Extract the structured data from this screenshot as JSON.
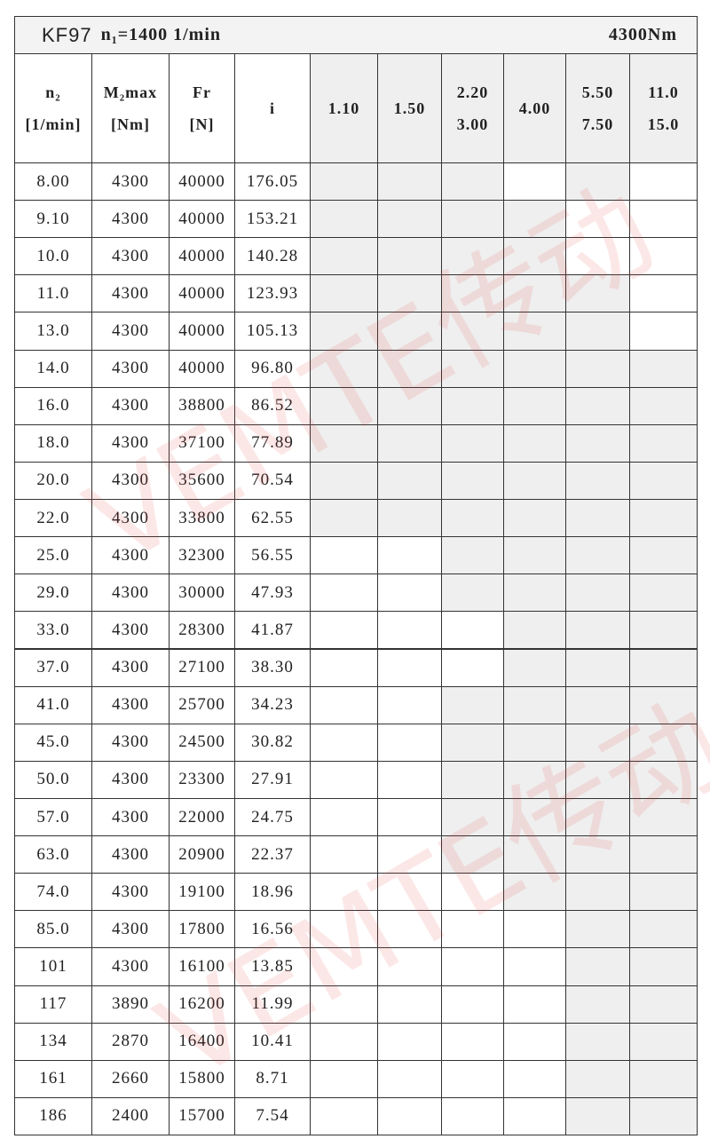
{
  "header": {
    "model": "KF97",
    "input_speed": "n₁=1400 1/min",
    "torque": "4300Nm"
  },
  "columns": [
    [
      "n₂",
      "[1/min]"
    ],
    [
      "M₂max",
      "[Nm]"
    ],
    [
      "Fr",
      "[N]"
    ],
    [
      "i"
    ],
    [
      "1.10"
    ],
    [
      "1.50"
    ],
    [
      "2.20",
      "3.00"
    ],
    [
      "4.00"
    ],
    [
      "5.50",
      "7.50"
    ],
    [
      "11.0",
      "15.0"
    ]
  ],
  "rows": [
    [
      "8.00",
      "4300",
      "40000",
      "176.05"
    ],
    [
      "9.10",
      "4300",
      "40000",
      "153.21"
    ],
    [
      "10.0",
      "4300",
      "40000",
      "140.28"
    ],
    [
      "11.0",
      "4300",
      "40000",
      "123.93"
    ],
    [
      "13.0",
      "4300",
      "40000",
      "105.13"
    ],
    [
      "14.0",
      "4300",
      "40000",
      "96.80"
    ],
    [
      "16.0",
      "4300",
      "38800",
      "86.52"
    ],
    [
      "18.0",
      "4300",
      "37100",
      "77.89"
    ],
    [
      "20.0",
      "4300",
      "35600",
      "70.54"
    ],
    [
      "22.0",
      "4300",
      "33800",
      "62.55"
    ],
    [
      "25.0",
      "4300",
      "32300",
      "56.55"
    ],
    [
      "29.0",
      "4300",
      "30000",
      "47.93"
    ],
    [
      "33.0",
      "4300",
      "28300",
      "41.87"
    ],
    [
      "37.0",
      "4300",
      "27100",
      "38.30"
    ],
    [
      "41.0",
      "4300",
      "25700",
      "34.23"
    ],
    [
      "45.0",
      "4300",
      "24500",
      "30.82"
    ],
    [
      "50.0",
      "4300",
      "23300",
      "27.91"
    ],
    [
      "57.0",
      "4300",
      "22000",
      "24.75"
    ],
    [
      "63.0",
      "4300",
      "20900",
      "22.37"
    ],
    [
      "74.0",
      "4300",
      "19100",
      "18.96"
    ],
    [
      "85.0",
      "4300",
      "17800",
      "16.56"
    ],
    [
      "101",
      "4300",
      "16100",
      "13.85"
    ],
    [
      "117",
      "3890",
      "16200",
      "11.99"
    ],
    [
      "134",
      "2870",
      "16400",
      "10.41"
    ],
    [
      "161",
      "2660",
      "15800",
      "8.71"
    ],
    [
      "186",
      "2400",
      "15700",
      "7.54"
    ]
  ],
  "watermark": "VEMTE传动"
}
